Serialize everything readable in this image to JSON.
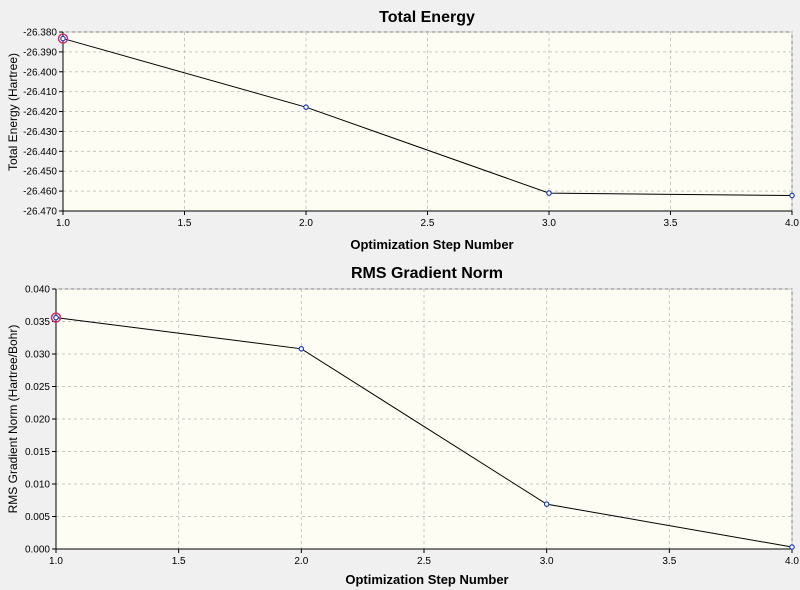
{
  "colors": {
    "window_bg": "#f0f0f0",
    "plot_bg": "#fdfdf3",
    "grid": "#c8c8c8",
    "line": "#000000",
    "point": "#1f3fbf",
    "highlight": "#d0306a"
  },
  "chart_data": [
    {
      "type": "line",
      "title": "Total Energy",
      "xlabel": "Optimization Step Number",
      "ylabel": "Total Energy (Hartree)",
      "x": [
        1,
        2,
        3,
        4
      ],
      "values": [
        -26.3833,
        -26.4178,
        -26.461,
        -26.4622
      ],
      "xlim": [
        1.0,
        4.0
      ],
      "ylim": [
        -26.47,
        -26.38
      ],
      "xticks": [
        1.0,
        1.5,
        2.0,
        2.5,
        3.0,
        3.5,
        4.0
      ],
      "yticks": [
        -26.38,
        -26.39,
        -26.4,
        -26.41,
        -26.42,
        -26.43,
        -26.44,
        -26.45,
        -26.46,
        -26.47
      ],
      "xtick_labels": [
        "1.0",
        "1.5",
        "2.0",
        "2.5",
        "3.0",
        "3.5",
        "4.0"
      ],
      "ytick_labels": [
        "-26.380",
        "-26.390",
        "-26.400",
        "-26.410",
        "-26.420",
        "-26.430",
        "-26.440",
        "-26.450",
        "-26.460",
        "-26.470"
      ],
      "grid": true,
      "highlighted_point": 1
    },
    {
      "type": "line",
      "title": "RMS Gradient Norm",
      "xlabel": "Optimization Step Number",
      "ylabel": "RMS Gradient Norm (Hartree/Bohr)",
      "x": [
        1,
        2,
        3,
        4
      ],
      "values": [
        0.0356,
        0.0308,
        0.0069,
        0.0003
      ],
      "xlim": [
        1.0,
        4.0
      ],
      "ylim": [
        0.0,
        0.04
      ],
      "xticks": [
        1.0,
        1.5,
        2.0,
        2.5,
        3.0,
        3.5,
        4.0
      ],
      "yticks": [
        0.0,
        0.005,
        0.01,
        0.015,
        0.02,
        0.025,
        0.03,
        0.035,
        0.04
      ],
      "xtick_labels": [
        "1.0",
        "1.5",
        "2.0",
        "2.5",
        "3.0",
        "3.5",
        "4.0"
      ],
      "ytick_labels": [
        "0.000",
        "0.005",
        "0.010",
        "0.015",
        "0.020",
        "0.025",
        "0.030",
        "0.035",
        "0.040"
      ],
      "grid": true,
      "highlighted_point": 1
    }
  ]
}
